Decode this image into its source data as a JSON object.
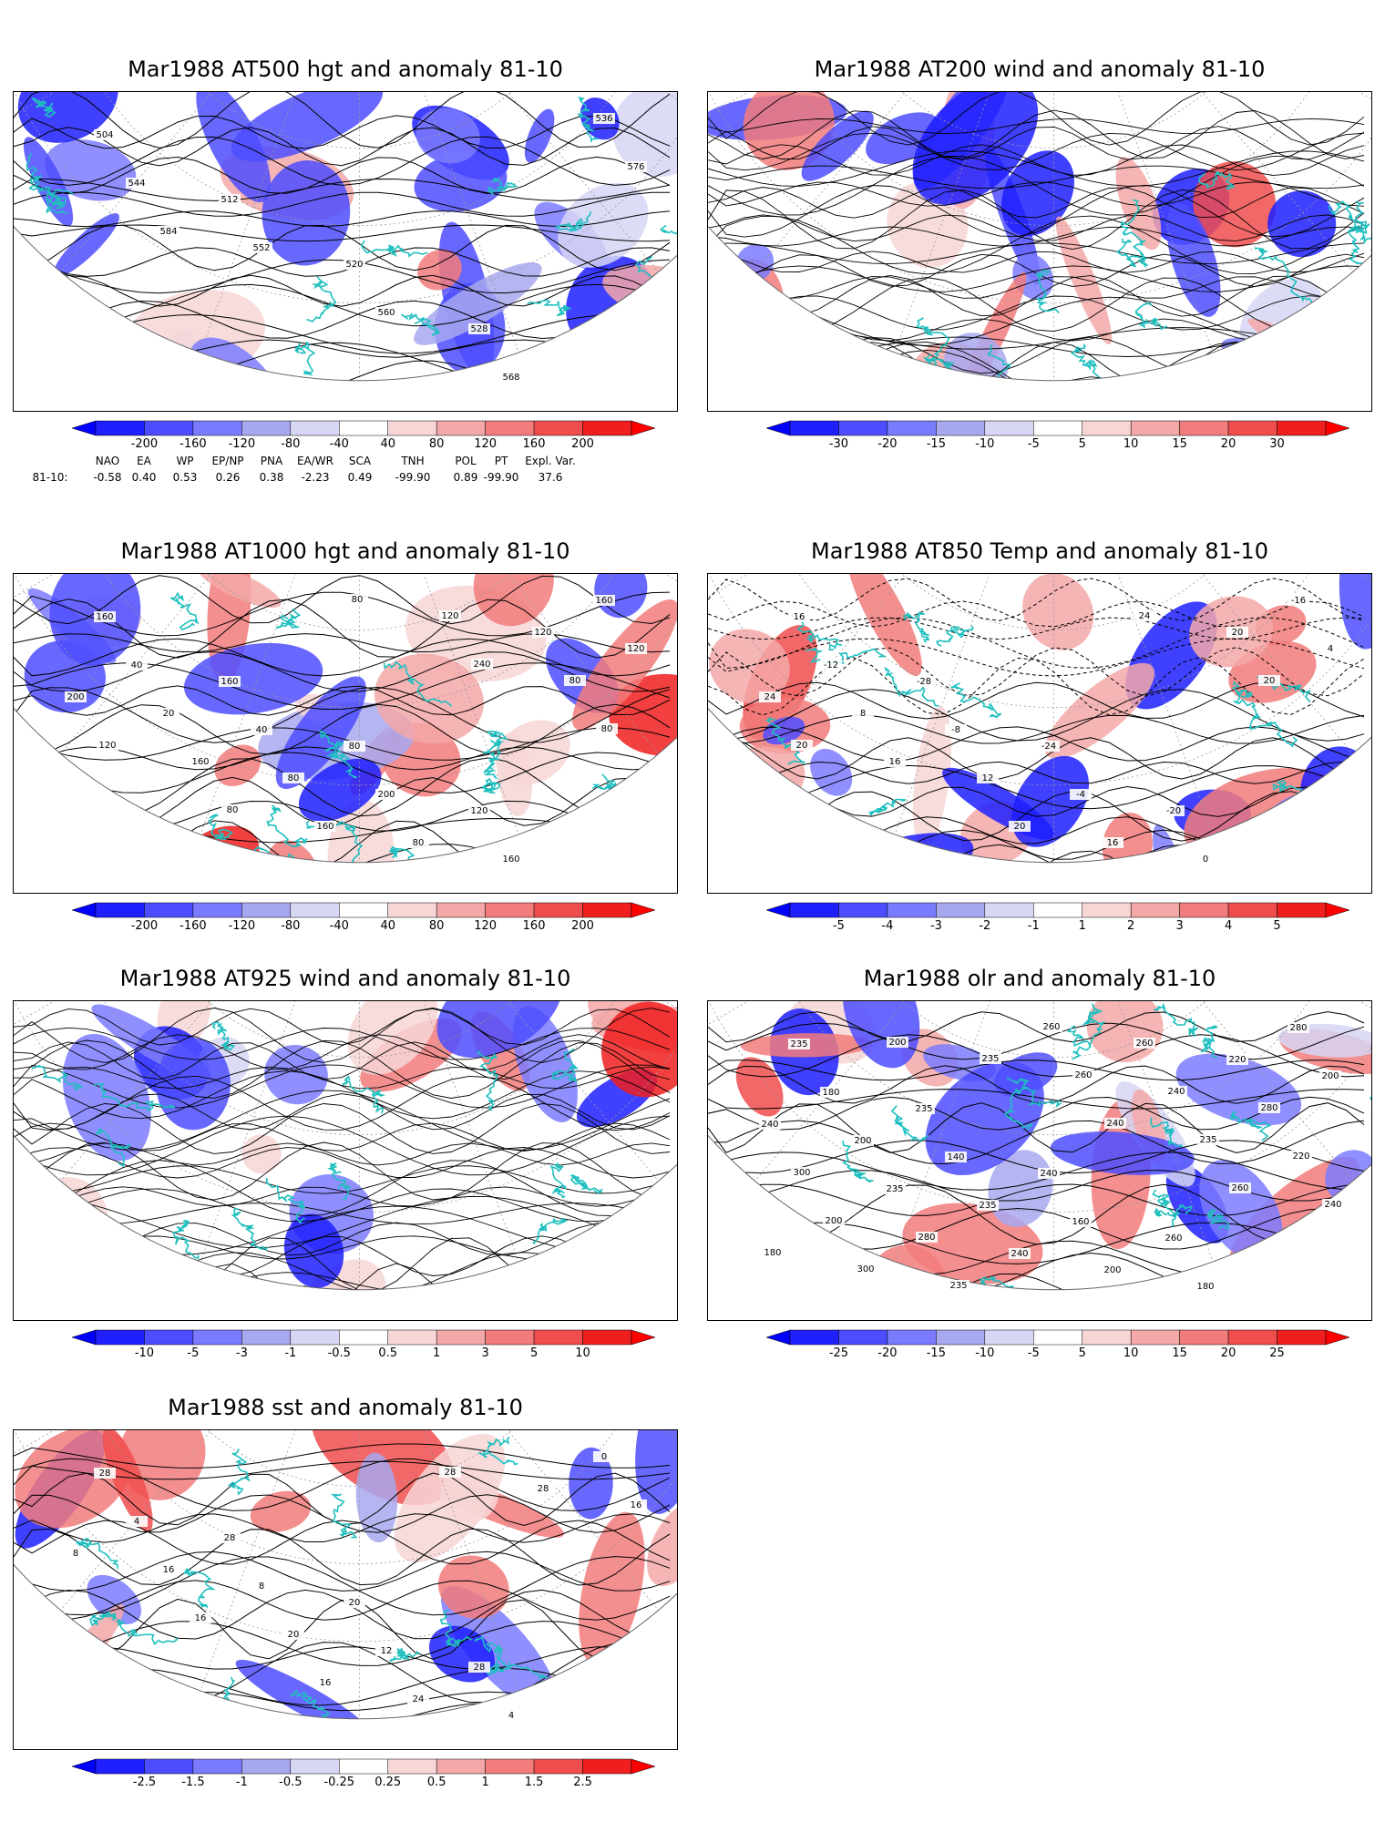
{
  "panels": [
    {
      "id": "p500",
      "title": "Mar1988 AT500 hgt and anomaly 81-10",
      "variant": "hgt500",
      "colorbar": {
        "labels": [
          "-200",
          "-160",
          "-120",
          "-80",
          "-40",
          "40",
          "80",
          "120",
          "160",
          "200"
        ]
      },
      "contour_labels": [
        "504",
        "512",
        "520",
        "528",
        "536",
        "544",
        "552",
        "560",
        "568",
        "576",
        "584"
      ]
    },
    {
      "id": "p200",
      "title": "Mar1988 AT200 wind and anomaly 81-10",
      "variant": "wind200",
      "colorbar": {
        "labels": [
          "-30",
          "-20",
          "-15",
          "-10",
          "-5",
          "5",
          "10",
          "15",
          "20",
          "30"
        ]
      },
      "contour_labels": []
    },
    {
      "id": "p1000",
      "title": "Mar1988 AT1000 hgt and anomaly 81-10",
      "variant": "hgt1000",
      "colorbar": {
        "labels": [
          "-200",
          "-160",
          "-120",
          "-80",
          "-40",
          "40",
          "80",
          "120",
          "160",
          "200"
        ]
      },
      "contour_labels": [
        "160",
        "160",
        "80",
        "120",
        "160",
        "40",
        "40",
        "200",
        "160",
        "120",
        "20",
        "80",
        "80",
        "120",
        "200",
        "160",
        "160",
        "120",
        "80",
        "120",
        "80",
        "80",
        "240",
        "80"
      ]
    },
    {
      "id": "p850",
      "title": "Mar1988 AT850 Temp and anomaly 81-10",
      "variant": "temp850",
      "colorbar": {
        "labels": [
          "-5",
          "-4",
          "-3",
          "-2",
          "-1",
          "1",
          "2",
          "3",
          "4",
          "5"
        ]
      },
      "contour_labels": [
        "16",
        "-28",
        "-24",
        "-20",
        "-16",
        "-12",
        "-8",
        "-4",
        "0",
        "4",
        "8",
        "12",
        "16",
        "20",
        "24",
        "16",
        "20",
        "24",
        "20",
        "20"
      ]
    },
    {
      "id": "p925",
      "title": "Mar1988 AT925 wind and anomaly 81-10",
      "variant": "wind925",
      "colorbar": {
        "labels": [
          "-10",
          "-5",
          "-3",
          "-1",
          "-0.5",
          "0.5",
          "1",
          "3",
          "5",
          "10"
        ]
      },
      "contour_labels": []
    },
    {
      "id": "polr",
      "title": "Mar1988 olr and anomaly 81-10",
      "variant": "olr",
      "colorbar": {
        "labels": [
          "-25",
          "-20",
          "-15",
          "-10",
          "-5",
          "5",
          "10",
          "15",
          "20",
          "25"
        ]
      },
      "contour_labels": [
        "235",
        "235",
        "240",
        "260",
        "280",
        "180",
        "140",
        "160",
        "180",
        "200",
        "200",
        "235",
        "200",
        "220",
        "240",
        "235",
        "240",
        "260",
        "280",
        "300",
        "280",
        "260",
        "240",
        "220",
        "200",
        "235",
        "260",
        "235",
        "240",
        "300",
        "235",
        "240",
        "260",
        "180",
        "200"
      ]
    },
    {
      "id": "psst",
      "title": "Mar1988 sst and anomaly 81-10",
      "variant": "sst",
      "colorbar": {
        "labels": [
          "-2.5",
          "-1.5",
          "-1",
          "-0.5",
          "-0.25",
          "0.25",
          "0.5",
          "1",
          "1.5",
          "2.5"
        ]
      },
      "contour_labels": [
        "28",
        "28",
        "20",
        "28",
        "0",
        "4",
        "8",
        "12",
        "4",
        "16",
        "16",
        "20",
        "24",
        "28",
        "8",
        "16",
        "16",
        "28"
      ]
    }
  ],
  "teleconnection": {
    "headers": [
      "NAO",
      "EA",
      "WP",
      "EP/NP",
      "PNA",
      "EA/WR",
      "SCA",
      "TNH",
      "POL",
      "PT",
      "Expl. Var."
    ],
    "row_label": "81-10:",
    "values": [
      "-0.58",
      "0.40",
      "0.53",
      "0.26",
      "0.38",
      "-2.23",
      "0.49",
      "-99.90",
      "0.89",
      "-99.90",
      "37.6"
    ]
  },
  "colors": {
    "neg": [
      "#1f1fff",
      "#4d4dff",
      "#7b7bff",
      "#a8a8f0",
      "#d6d6f5"
    ],
    "pos": [
      "#f7d6d6",
      "#f4a8a8",
      "#f27b7b",
      "#f04d4d",
      "#f01f1f"
    ],
    "coast": "#1fbfbf",
    "frame": "#000000"
  }
}
